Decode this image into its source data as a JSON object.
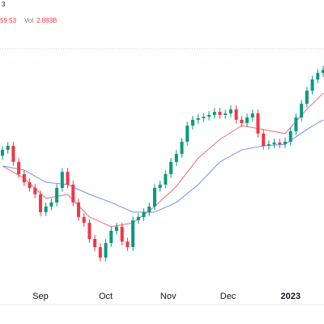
{
  "chart_data": {
    "type": "candlestick",
    "header": {
      "top": "3",
      "price": "59.53",
      "vol_label": "Vol",
      "vol_value": "2.883B"
    },
    "ylim": [
      0,
      100
    ],
    "xlim": [
      0,
      59
    ],
    "xticks": [
      {
        "value": 7,
        "label": "Sep"
      },
      {
        "value": 19,
        "label": "Oct"
      },
      {
        "value": 30.5,
        "label": "Nov"
      },
      {
        "value": 41.5,
        "label": "Dec"
      },
      {
        "value": 53,
        "label": "2023"
      }
    ],
    "up_color": "#089981",
    "down_color": "#f23645",
    "open": [
      58.0,
      60.3,
      61.9,
      55.6,
      50.8,
      47.6,
      45.4,
      42.9,
      35.9,
      38.1,
      39.7,
      45.4,
      51.7,
      46.7,
      39.7,
      34.0,
      31.7,
      25.4,
      22.2,
      18.1,
      23.8,
      28.6,
      30.2,
      24.4,
      22.2,
      32.7,
      34.0,
      35.9,
      38.1,
      45.4,
      46.7,
      50.8,
      55.6,
      58.7,
      63.5,
      69.8,
      72.1,
      72.7,
      73.3,
      74.0,
      75.2,
      74.0,
      74.6,
      76.2,
      72.1,
      70.8,
      73.0,
      74.6,
      66.7,
      61.9,
      62.5,
      63.2,
      62.5,
      63.5,
      67.6,
      73.0,
      78.4,
      83.5,
      87.9,
      90.5
    ],
    "high": [
      61.8,
      63.4,
      63.4,
      57.1,
      52.3,
      49.1,
      46.9,
      44.4,
      39.6,
      41.2,
      46.9,
      53.2,
      53.2,
      48.2,
      41.2,
      35.5,
      33.2,
      26.9,
      23.7,
      25.3,
      30.1,
      31.7,
      31.7,
      25.9,
      34.2,
      35.5,
      37.4,
      39.6,
      46.9,
      48.2,
      52.3,
      57.1,
      60.2,
      65.0,
      71.3,
      73.6,
      74.2,
      74.8,
      75.5,
      76.7,
      76.7,
      76.1,
      77.7,
      77.7,
      73.6,
      74.5,
      76.1,
      76.1,
      68.2,
      64.0,
      64.7,
      64.7,
      65.0,
      69.1,
      74.5,
      79.9,
      85.0,
      89.4,
      92.0,
      93.2
    ],
    "low": [
      56.5,
      58.8,
      54.1,
      49.3,
      46.1,
      43.9,
      41.4,
      34.4,
      34.4,
      36.6,
      38.2,
      43.9,
      45.2,
      38.2,
      32.5,
      30.2,
      23.9,
      20.7,
      16.6,
      16.6,
      22.3,
      27.1,
      22.9,
      20.7,
      20.7,
      31.2,
      32.5,
      34.4,
      36.6,
      43.9,
      45.2,
      49.3,
      54.1,
      57.2,
      62.0,
      68.3,
      70.6,
      71.2,
      71.8,
      72.5,
      72.5,
      72.5,
      73.1,
      70.6,
      69.3,
      69.3,
      71.5,
      65.2,
      60.4,
      60.4,
      61.0,
      61.0,
      61.0,
      62.0,
      66.1,
      71.5,
      76.9,
      82.0,
      86.4,
      89.0
    ],
    "close": [
      60.3,
      61.9,
      55.6,
      50.8,
      47.6,
      45.4,
      42.9,
      35.9,
      38.1,
      39.7,
      45.4,
      51.7,
      46.7,
      39.7,
      34.0,
      31.7,
      25.4,
      22.2,
      18.1,
      23.8,
      28.6,
      30.2,
      24.4,
      22.2,
      32.7,
      34.0,
      35.9,
      38.1,
      45.4,
      46.7,
      50.8,
      55.6,
      58.7,
      63.5,
      69.8,
      72.1,
      72.7,
      73.3,
      74.0,
      75.2,
      74.0,
      74.6,
      76.2,
      72.1,
      70.8,
      73.0,
      74.6,
      66.7,
      61.9,
      62.5,
      63.2,
      62.5,
      63.5,
      67.6,
      73.0,
      78.4,
      83.5,
      87.9,
      90.5,
      91.7
    ],
    "lines": [
      {
        "color": "#f06a79",
        "x": [
          0,
          4,
          8,
          12,
          16,
          20,
          24,
          28,
          32,
          36,
          40,
          44,
          48,
          52,
          56,
          59
        ],
        "values": [
          54.0,
          49.2,
          41.3,
          42.9,
          34.0,
          30.2,
          31.7,
          38.1,
          46.0,
          57.1,
          64.4,
          69.8,
          68.3,
          66.7,
          76.2,
          82.5
        ]
      },
      {
        "color": "#6f8ff0",
        "x": [
          0,
          4,
          8,
          12,
          16,
          20,
          24,
          28,
          32,
          36,
          40,
          44,
          48,
          52,
          56,
          59
        ],
        "values": [
          54.0,
          52.4,
          47.6,
          46.7,
          42.9,
          39.7,
          35.9,
          35.9,
          39.7,
          46.7,
          55.6,
          60.3,
          61.9,
          62.5,
          68.3,
          72.1
        ]
      }
    ]
  }
}
